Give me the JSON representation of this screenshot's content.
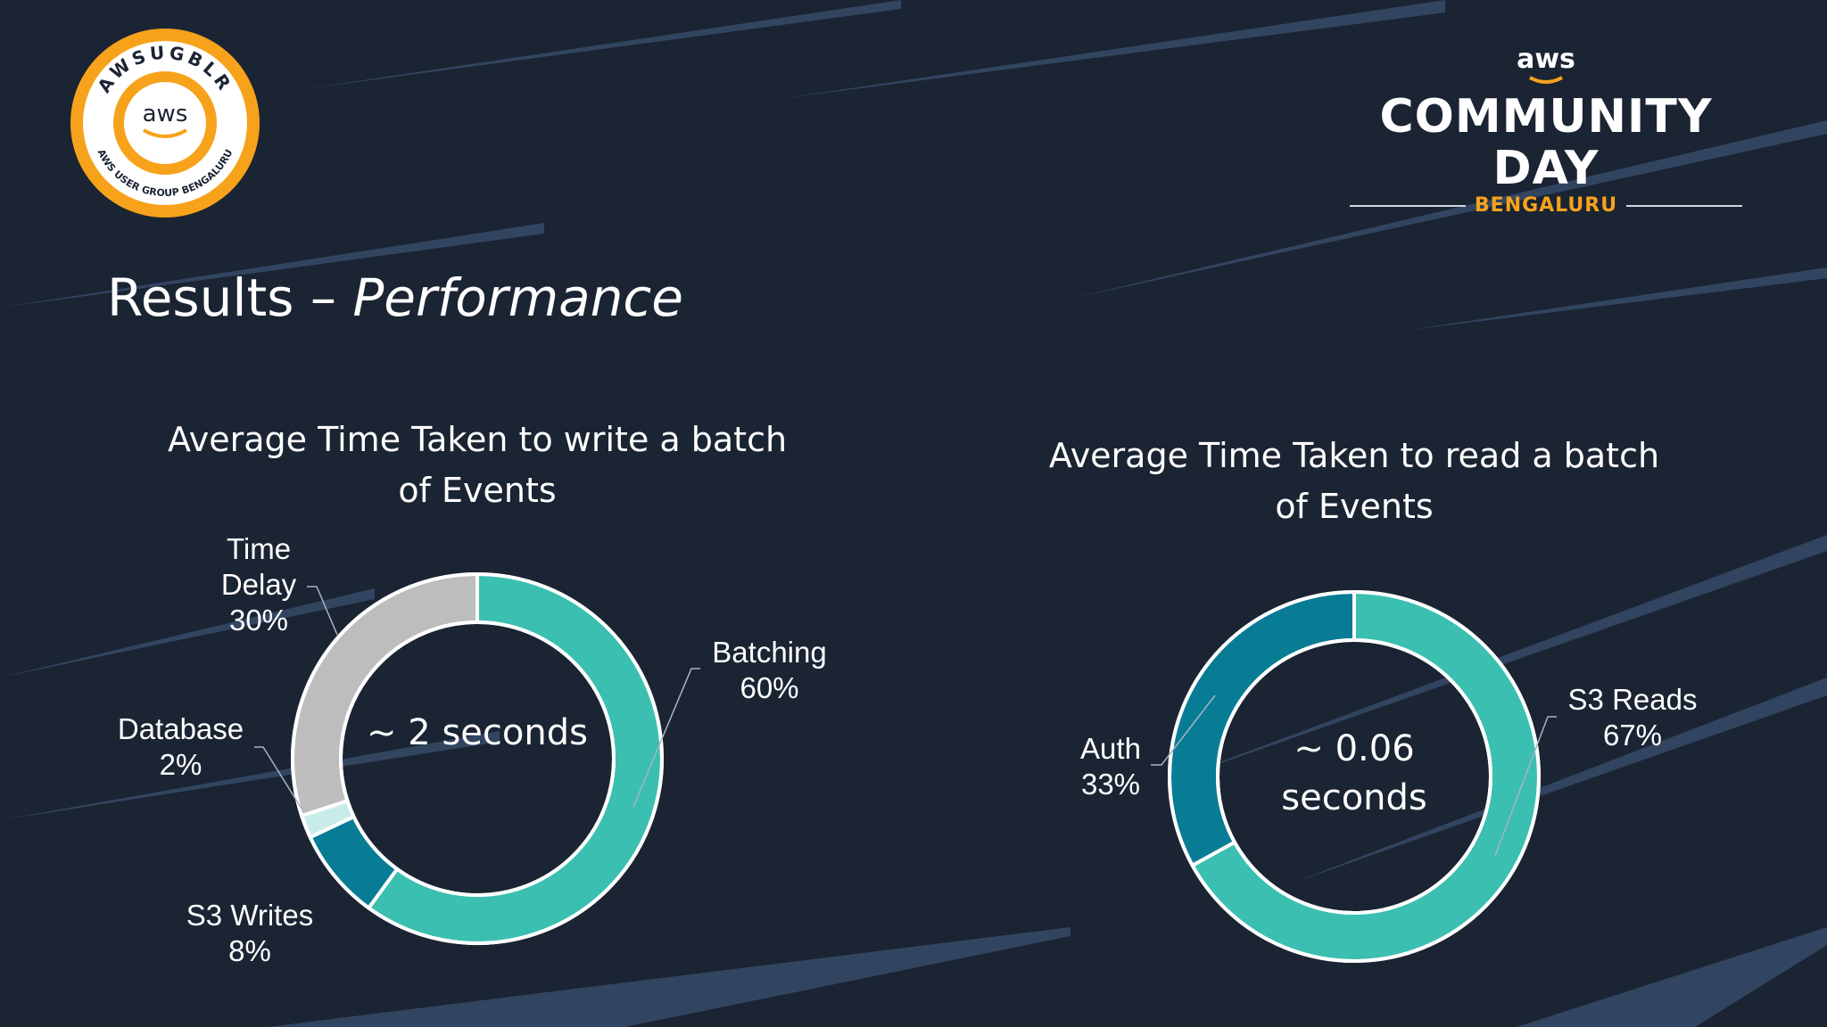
{
  "slide": {
    "title_main": "Results – ",
    "title_sub": "Performance"
  },
  "ug_logo": {
    "aws": "aws",
    "ring_top": "AWSUGBLR",
    "ring_bottom": "AWS USER GROUP BENGALURU"
  },
  "cd_logo": {
    "aws": "aws",
    "main": "COMMUNITY DAY",
    "city": "BENGALURU"
  },
  "colors": {
    "background": "#1b2433",
    "stripe": "#4f6f97",
    "teal_light": "#3bbfb0",
    "teal_dark": "#087c95",
    "grey": "#bdbdbd",
    "pale": "#c8ecea",
    "orange": "#f7a21b"
  },
  "chart_data": [
    {
      "type": "pie",
      "donut": true,
      "title": "Average Time Taken to write a batch of Events",
      "title_lines": [
        "Average Time Taken to write a batch",
        "of Events"
      ],
      "center_text": [
        "~ 2 seconds"
      ],
      "slices": [
        {
          "name": "Batching",
          "value": 60,
          "label": "60%",
          "color": "#3bbfb0"
        },
        {
          "name": "S3 Writes",
          "value": 8,
          "label": "8%",
          "color": "#087c95"
        },
        {
          "name": "Database",
          "value": 2,
          "label": "2%",
          "color": "#c8ecea"
        },
        {
          "name": "Time Delay",
          "value": 30,
          "label": "30%",
          "color": "#bdbdbd"
        }
      ],
      "label_lines": [
        [
          "Batching",
          "60%"
        ],
        [
          "S3 Writes",
          "8%"
        ],
        [
          "Database",
          "2%"
        ],
        [
          "Time",
          "Delay",
          "30%"
        ]
      ]
    },
    {
      "type": "pie",
      "donut": true,
      "title": "Average Time Taken to read a batch of Events",
      "title_lines": [
        "Average Time Taken to read a batch",
        "of Events"
      ],
      "center_text": [
        "~ 0.06",
        "seconds"
      ],
      "slices": [
        {
          "name": "S3 Reads",
          "value": 67,
          "label": "67%",
          "color": "#3bbfb0"
        },
        {
          "name": "Auth",
          "value": 33,
          "label": "33%",
          "color": "#087c95"
        }
      ],
      "label_lines": [
        [
          "S3 Reads",
          "67%"
        ],
        [
          "Auth",
          "33%"
        ]
      ]
    }
  ]
}
